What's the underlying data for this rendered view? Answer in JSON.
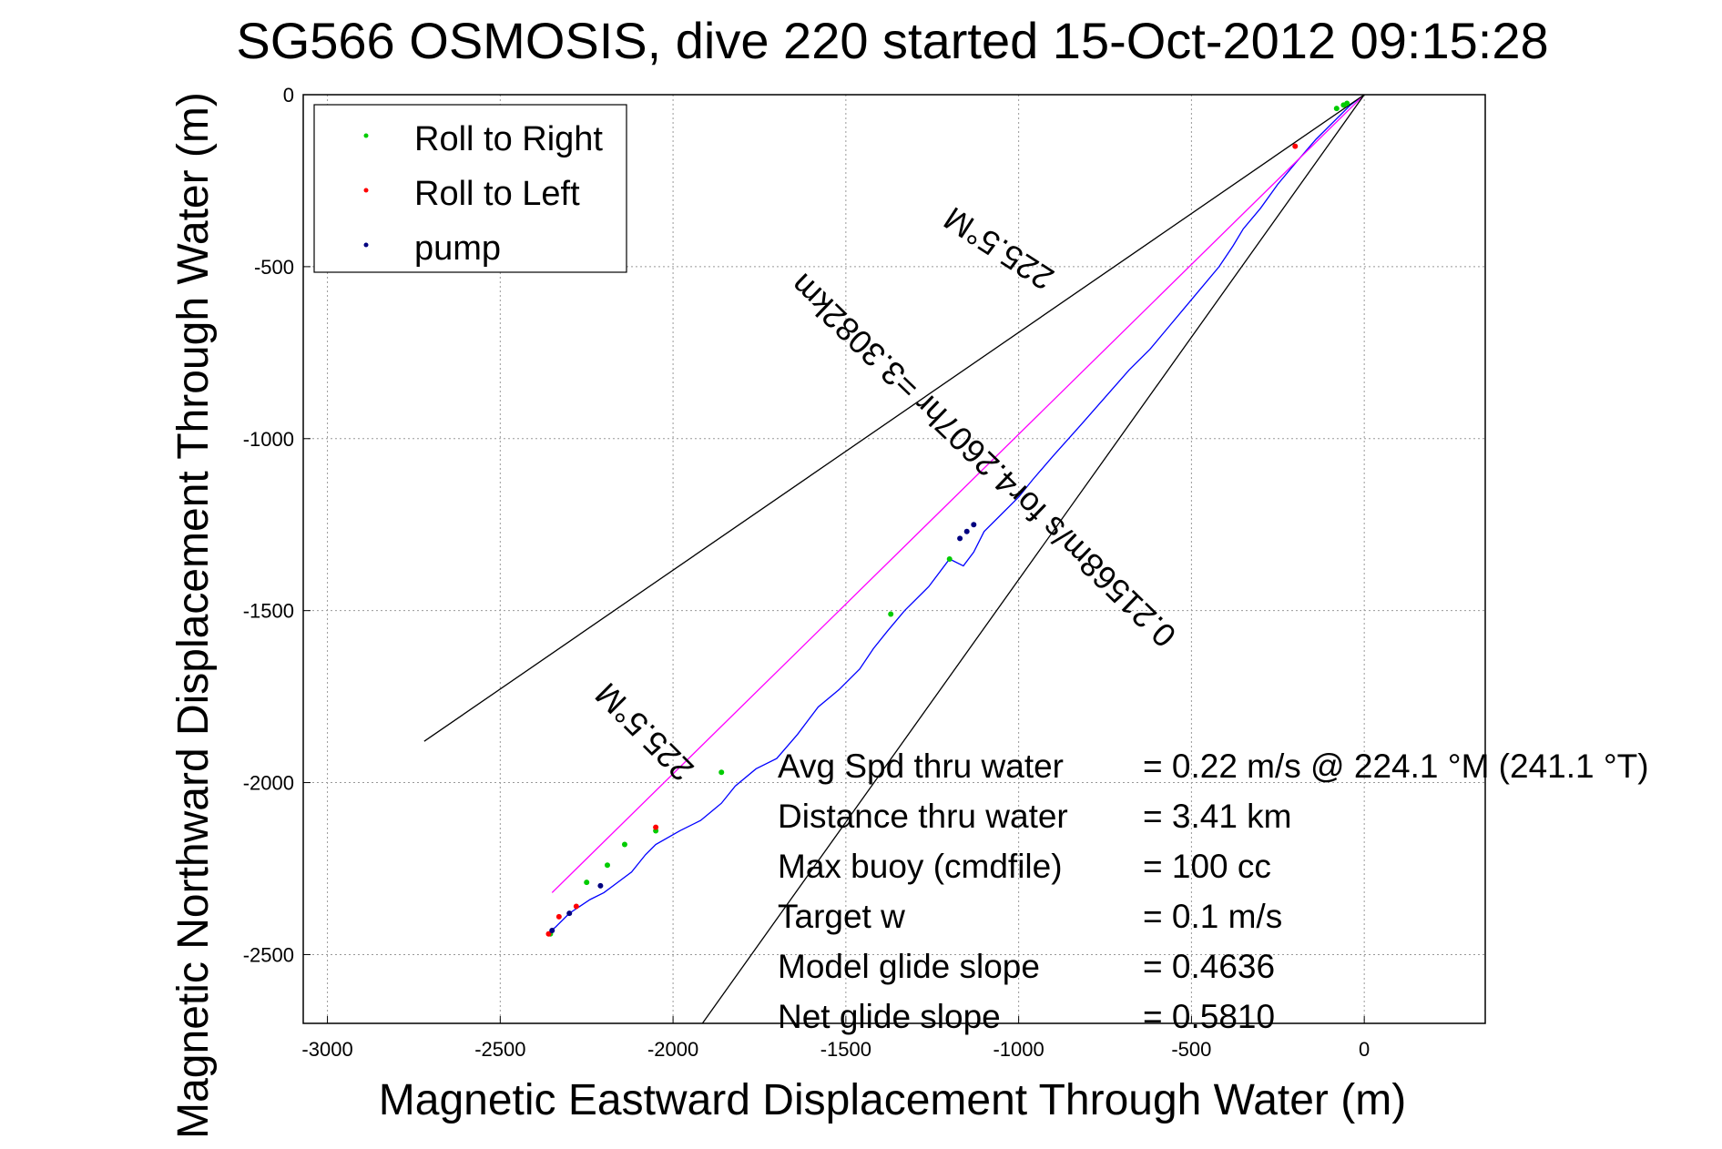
{
  "chart_data": {
    "type": "line",
    "title": "SG566 OSMOSIS, dive 220 started 15-Oct-2012 09:15:28",
    "xlabel": "Magnetic Eastward Displacement Through Water (m)",
    "ylabel": "Magnetic Northward Displacement Through Water (m)",
    "xlim": [
      -3070,
      350
    ],
    "ylim": [
      -2700,
      0
    ],
    "xticks": [
      -3000,
      -2500,
      -2000,
      -1500,
      -1000,
      -500,
      0
    ],
    "xtick_labels": [
      "-3000",
      "-2500",
      "-2000",
      "-1500",
      "-1000",
      "-500",
      "0"
    ],
    "yticks": [
      0,
      -500,
      -1000,
      -1500,
      -2000,
      -2500
    ],
    "ytick_labels": [
      "0",
      "-500",
      "-1000",
      "-1500",
      "-2000",
      "-2500"
    ],
    "grid": true,
    "legend": {
      "placement": "top-left",
      "entries": [
        {
          "label": "Roll to Right",
          "color": "#00cc00"
        },
        {
          "label": "Roll to Left",
          "color": "#ff0000"
        },
        {
          "label": "pump",
          "color": "#000080"
        }
      ]
    },
    "series": [
      {
        "color": "#0000ff",
        "x": [
          0,
          -40,
          -80,
          -140,
          -200,
          -250,
          -300,
          -350,
          -380,
          -420,
          -470,
          -520,
          -570,
          -620,
          -680,
          -750,
          -820,
          -900,
          -960,
          -1000,
          -1050,
          -1100,
          -1130,
          -1160,
          -1200,
          -1260,
          -1330,
          -1380,
          -1420,
          -1460,
          -1520,
          -1580,
          -1640,
          -1700,
          -1760,
          -1820,
          -1860,
          -1920,
          -1980,
          -2050,
          -2080,
          -2120,
          -2160,
          -2200,
          -2240,
          -2270,
          -2300,
          -2340,
          -2365
        ],
        "y": [
          0,
          -30,
          -70,
          -130,
          -200,
          -260,
          -330,
          -390,
          -440,
          -500,
          -560,
          -620,
          -680,
          -740,
          -800,
          -880,
          -960,
          -1050,
          -1120,
          -1170,
          -1220,
          -1270,
          -1330,
          -1370,
          -1350,
          -1430,
          -1500,
          -1560,
          -1610,
          -1670,
          -1730,
          -1780,
          -1860,
          -1930,
          -1960,
          -2010,
          -2060,
          -2110,
          -2140,
          -2180,
          -2210,
          -2260,
          -2290,
          -2320,
          -2340,
          -2360,
          -2380,
          -2420,
          -2440
        ]
      },
      {
        "color": "#ff00ff",
        "x": [
          0,
          -2350
        ],
        "y": [
          0,
          -2320
        ]
      },
      {
        "color": "#000000",
        "x": [
          0,
          -2720
        ],
        "y": [
          0,
          -1880
        ]
      },
      {
        "color": "#000000",
        "x": [
          0,
          -1915
        ],
        "y": [
          0,
          -2700
        ]
      }
    ],
    "markers": {
      "roll_right": {
        "color": "#00cc00",
        "x": [
          -80,
          -60,
          -50,
          -1200,
          -1370,
          -1860,
          -2050,
          -2140,
          -2190,
          -2250,
          -2355
        ],
        "y": [
          -40,
          -30,
          -25,
          -1350,
          -1510,
          -1970,
          -2140,
          -2180,
          -2240,
          -2290,
          -2440
        ]
      },
      "roll_left": {
        "color": "#ff0000",
        "x": [
          -200,
          -2050,
          -2280,
          -2330,
          -2360
        ],
        "y": [
          -150,
          -2130,
          -2360,
          -2390,
          -2440
        ]
      },
      "pump": {
        "color": "#000080",
        "x": [
          -1170,
          -1150,
          -1130,
          -2210,
          -2300,
          -2350
        ],
        "y": [
          -1290,
          -1270,
          -1250,
          -2300,
          -2380,
          -2430
        ]
      }
    },
    "annotations": [
      {
        "text": "225.5°M",
        "x": -1040,
        "y": -420,
        "rotate": 213
      },
      {
        "text": "0.21568m/s for4.2607hr =3.3082km",
        "x": -1080,
        "y": -1040,
        "rotate": 224
      },
      {
        "text": "225.5°M",
        "x": -2060,
        "y": -1830,
        "rotate": 225
      }
    ],
    "stats": [
      {
        "label": "Avg Spd thru water",
        "value": "=  0.22 m/s @ 224.1 °M (241.1 °T)"
      },
      {
        "label": "Distance thru water",
        "value": "=  3.41 km"
      },
      {
        "label": "Max buoy (cmdfile)",
        "value": "= 100 cc"
      },
      {
        "label": "Target w",
        "value": "= 0.1 m/s"
      },
      {
        "label": "Model glide slope",
        "value": "= 0.4636"
      },
      {
        "label": "Net glide slope",
        "value": "= 0.5810"
      }
    ]
  }
}
